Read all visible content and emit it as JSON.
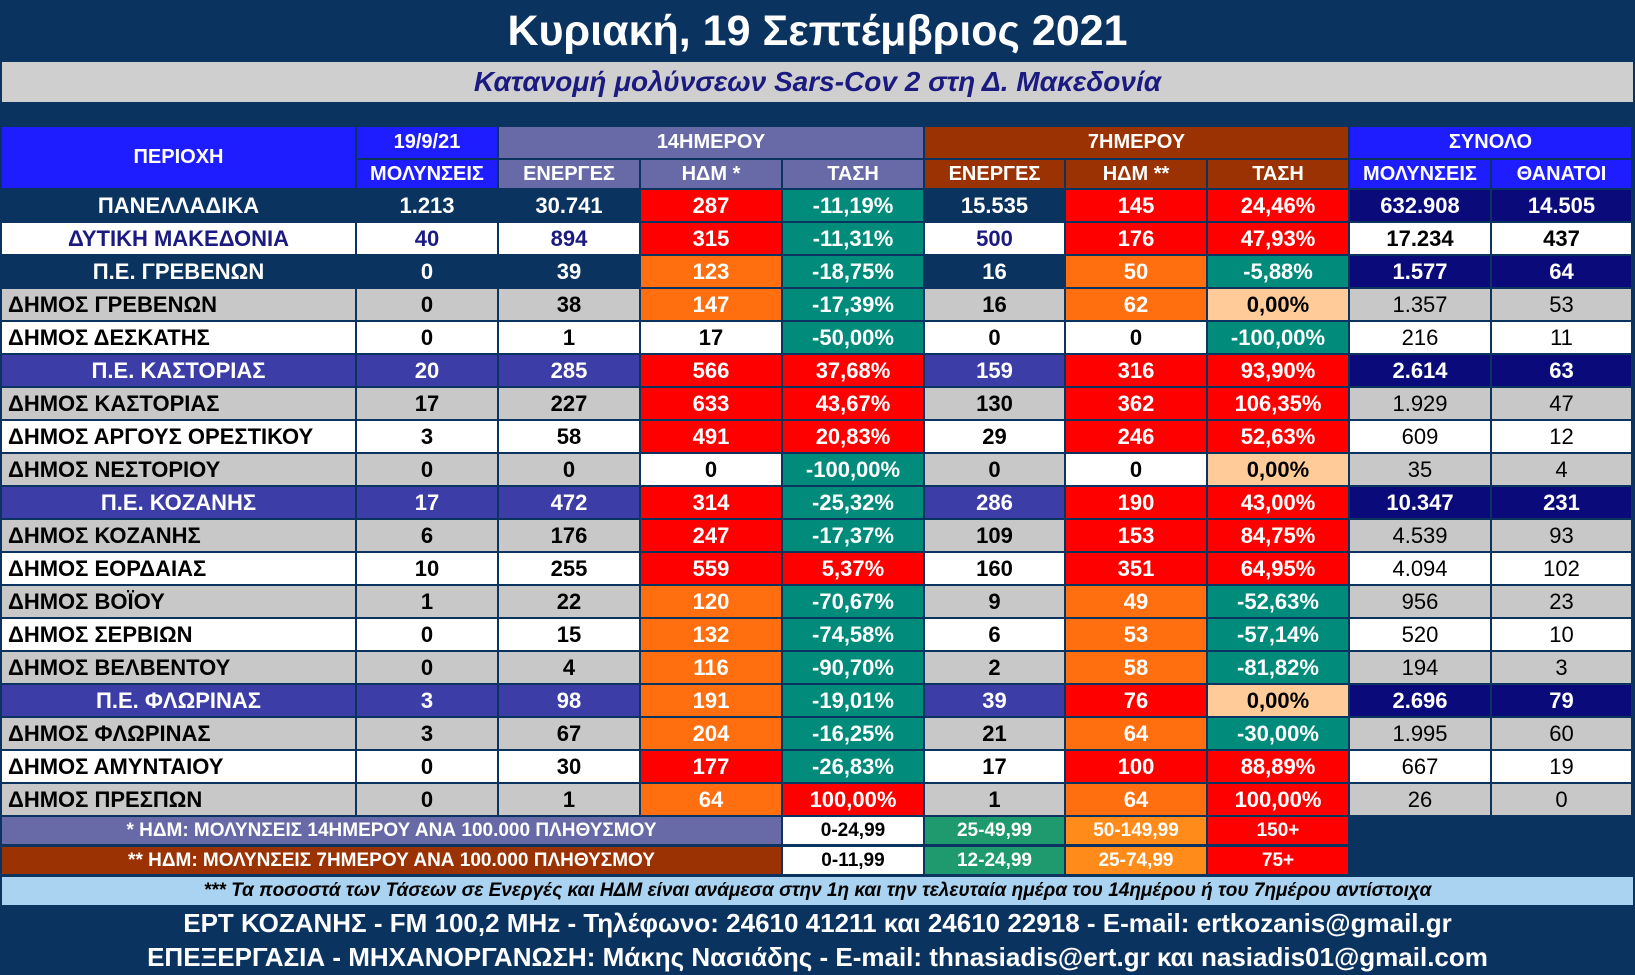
{
  "title": "Κυριακή, 19 Σεπτέμβριος 2021",
  "subtitle": "Κατανομή μολύνσεων Sars-Cov 2 στη Δ. Μακεδονία",
  "header": {
    "date": "19/9/21",
    "group14": "14ΗΜΕΡΟΥ",
    "group7": "7ΗΜΕΡΟΥ",
    "groupTotal": "ΣΥΝΟΛΟ",
    "region": "ΠΕΡΙΟΧΗ",
    "columns": [
      "ΜΟΛΥΝΣΕΙΣ",
      "ΕΝΕΡΓΕΣ",
      "ΗΔΜ *",
      "ΤΑΣΗ",
      "ΕΝΕΡΓΕΣ",
      "ΗΔΜ **",
      "ΤΑΣΗ",
      "ΜΟΛΥΝΣΕΙΣ",
      "ΘΑΝΑΤΟΙ"
    ]
  },
  "rows": [
    {
      "name": "ΠΑΝΕΛΛΑΔΙΚΑ",
      "type": "national",
      "c": [
        "1.213",
        "30.741",
        "287",
        "-11,19%",
        "15.535",
        "145",
        "24,46%",
        "632.908",
        "14.505"
      ],
      "colors": [
        "#ff0000",
        "#008b7a",
        "#ff0000",
        "#ff0000"
      ]
    },
    {
      "name": "ΔΥΤΙΚΗ ΜΑΚΕΔΟΝΙΑ",
      "type": "region",
      "c": [
        "40",
        "894",
        "315",
        "-11,31%",
        "500",
        "176",
        "47,93%",
        "17.234",
        "437"
      ],
      "colors": [
        "#ff0000",
        "#008b7a",
        "#ff0000",
        "#ff0000"
      ]
    },
    {
      "name": "Π.Ε. ΓΡΕΒΕΝΩΝ",
      "type": "unit-navy",
      "c": [
        "0",
        "39",
        "123",
        "-18,75%",
        "16",
        "50",
        "-5,88%",
        "1.577",
        "64"
      ],
      "colors": [
        "#ff6f0f",
        "#008b7a",
        "#ff6f0f",
        "#008b7a"
      ]
    },
    {
      "name": "ΔΗΜΟΣ ΓΡΕΒΕΝΩΝ",
      "type": "muni-gray",
      "c": [
        "0",
        "38",
        "147",
        "-17,39%",
        "16",
        "62",
        "0,00%",
        "1.357",
        "53"
      ],
      "colors": [
        "#ff6f0f",
        "#008b7a",
        "#ff6f0f",
        "#ffcc99"
      ]
    },
    {
      "name": "ΔΗΜΟΣ ΔΕΣΚΑΤΗΣ",
      "type": "muni-white",
      "c": [
        "0",
        "1",
        "17",
        "-50,00%",
        "0",
        "0",
        "-100,00%",
        "216",
        "11"
      ],
      "colors": [
        "#ffffff",
        "#008b7a",
        "#ffffff",
        "#008b7a"
      ]
    },
    {
      "name": "Π.Ε. ΚΑΣΤΟΡΙΑΣ",
      "type": "unit-blue",
      "c": [
        "20",
        "285",
        "566",
        "37,68%",
        "159",
        "316",
        "93,90%",
        "2.614",
        "63"
      ],
      "colors": [
        "#ff0000",
        "#ff0000",
        "#ff0000",
        "#ff0000"
      ]
    },
    {
      "name": "ΔΗΜΟΣ ΚΑΣΤΟΡΙΑΣ",
      "type": "muni-gray",
      "c": [
        "17",
        "227",
        "633",
        "43,67%",
        "130",
        "362",
        "106,35%",
        "1.929",
        "47"
      ],
      "colors": [
        "#ff0000",
        "#ff0000",
        "#ff0000",
        "#ff0000"
      ]
    },
    {
      "name": "ΔΗΜΟΣ ΑΡΓΟΥΣ ΟΡΕΣΤΙΚΟΥ",
      "type": "muni-white",
      "c": [
        "3",
        "58",
        "491",
        "20,83%",
        "29",
        "246",
        "52,63%",
        "609",
        "12"
      ],
      "colors": [
        "#ff0000",
        "#ff0000",
        "#ff0000",
        "#ff0000"
      ]
    },
    {
      "name": "ΔΗΜΟΣ ΝΕΣΤΟΡΙΟΥ",
      "type": "muni-gray",
      "c": [
        "0",
        "0",
        "0",
        "-100,00%",
        "0",
        "0",
        "0,00%",
        "35",
        "4"
      ],
      "colors": [
        "#ffffff",
        "#008b7a",
        "#ffffff",
        "#ffcc99"
      ]
    },
    {
      "name": "Π.Ε. ΚΟΖΑΝΗΣ",
      "type": "unit-blue",
      "c": [
        "17",
        "472",
        "314",
        "-25,32%",
        "286",
        "190",
        "43,00%",
        "10.347",
        "231"
      ],
      "colors": [
        "#ff0000",
        "#008b7a",
        "#ff0000",
        "#ff0000"
      ]
    },
    {
      "name": "ΔΗΜΟΣ ΚΟΖΑΝΗΣ",
      "type": "muni-gray",
      "c": [
        "6",
        "176",
        "247",
        "-17,37%",
        "109",
        "153",
        "84,75%",
        "4.539",
        "93"
      ],
      "colors": [
        "#ff0000",
        "#008b7a",
        "#ff0000",
        "#ff0000"
      ]
    },
    {
      "name": "ΔΗΜΟΣ ΕΟΡΔΑΙΑΣ",
      "type": "muni-white",
      "c": [
        "10",
        "255",
        "559",
        "5,37%",
        "160",
        "351",
        "64,95%",
        "4.094",
        "102"
      ],
      "colors": [
        "#ff0000",
        "#ff0000",
        "#ff0000",
        "#ff0000"
      ]
    },
    {
      "name": "ΔΗΜΟΣ ΒΟΪΟΥ",
      "type": "muni-gray",
      "c": [
        "1",
        "22",
        "120",
        "-70,67%",
        "9",
        "49",
        "-52,63%",
        "956",
        "23"
      ],
      "colors": [
        "#ff6f0f",
        "#008b7a",
        "#ff6f0f",
        "#008b7a"
      ]
    },
    {
      "name": "ΔΗΜΟΣ ΣΕΡΒΙΩΝ",
      "type": "muni-white",
      "c": [
        "0",
        "15",
        "132",
        "-74,58%",
        "6",
        "53",
        "-57,14%",
        "520",
        "10"
      ],
      "colors": [
        "#ff6f0f",
        "#008b7a",
        "#ff6f0f",
        "#008b7a"
      ]
    },
    {
      "name": "ΔΗΜΟΣ ΒΕΛΒΕΝΤΟΥ",
      "type": "muni-gray",
      "c": [
        "0",
        "4",
        "116",
        "-90,70%",
        "2",
        "58",
        "-81,82%",
        "194",
        "3"
      ],
      "colors": [
        "#ff6f0f",
        "#008b7a",
        "#ff6f0f",
        "#008b7a"
      ]
    },
    {
      "name": "Π.Ε. ΦΛΩΡΙΝΑΣ",
      "type": "unit-blue",
      "c": [
        "3",
        "98",
        "191",
        "-19,01%",
        "39",
        "76",
        "0,00%",
        "2.696",
        "79"
      ],
      "colors": [
        "#ff6f0f",
        "#008b7a",
        "#ff0000",
        "#ffcc99"
      ]
    },
    {
      "name": "ΔΗΜΟΣ ΦΛΩΡΙΝΑΣ",
      "type": "muni-gray",
      "c": [
        "3",
        "67",
        "204",
        "-16,25%",
        "21",
        "64",
        "-30,00%",
        "1.995",
        "60"
      ],
      "colors": [
        "#ff6f0f",
        "#008b7a",
        "#ff6f0f",
        "#008b7a"
      ]
    },
    {
      "name": "ΔΗΜΟΣ ΑΜΥΝΤΑΙΟΥ",
      "type": "muni-white",
      "c": [
        "0",
        "30",
        "177",
        "-26,83%",
        "17",
        "100",
        "88,89%",
        "667",
        "19"
      ],
      "colors": [
        "#ff0000",
        "#008b7a",
        "#ff0000",
        "#ff0000"
      ]
    },
    {
      "name": "ΔΗΜΟΣ ΠΡΕΣΠΩΝ",
      "type": "muni-gray",
      "c": [
        "0",
        "1",
        "64",
        "100,00%",
        "1",
        "64",
        "100,00%",
        "26",
        "0"
      ],
      "colors": [
        "#ff6f0f",
        "#ff0000",
        "#ff6f0f",
        "#ff0000"
      ]
    }
  ],
  "legend": [
    {
      "label": "* ΗΔΜ: ΜΟΛΥΝΣΕΙΣ 14ΗΜΕΡΟΥ ΑΝΑ 100.000 ΠΛΗΘΥΣΜΟΥ",
      "bg": "#686aa8",
      "ranges": [
        "0-24,99",
        "25-49,99",
        "50-149,99",
        "150+"
      ]
    },
    {
      "label": "** ΗΔΜ: ΜΟΛΥΝΣΕΙΣ 7ΗΜΕΡΟΥ ΑΝΑ 100.000 ΠΛΗΘΥΣΜΟΥ",
      "bg": "#9b3203",
      "ranges": [
        "0-11,99",
        "12-24,99",
        "25-74,99",
        "75+"
      ]
    }
  ],
  "legend_colors": [
    "#ffffff",
    "#1e9a6e",
    "#ff8c1a",
    "#ff0000"
  ],
  "note": "*** Τα ποσοστά των Τάσεων σε Ενεργές και ΗΔΜ είναι ανάμεσα στην 1η και την τελευταία ημέρα του 14ημέρου ή του 7ημέρου αντίστοιχα",
  "footer": {
    "line1": "ΕΡΤ ΚΟΖΑΝΗΣ - FM 100,2 MHz - Τηλέφωνο:  24610 41211 και 24610 22918 - E-mail: ertkozanis@gmail.gr",
    "line2": "ΕΠΕΞΕΡΓΑΣΙΑ  -  ΜΗΧΑΝΟΡΓΑΝΩΣΗ: Μάκης Νασιάδης  -   E-mail: thnasiadis@ert.gr και nasiadis01@gmail.com"
  },
  "colors": {
    "background": "#0b3360",
    "header_blue": "#1d1dff",
    "header_14": "#686aa8",
    "header_7": "#9b3203",
    "unit_blue": "#3d3da8",
    "total_navy": "#0a0a7a",
    "gray_row": "#c8c8c8"
  }
}
